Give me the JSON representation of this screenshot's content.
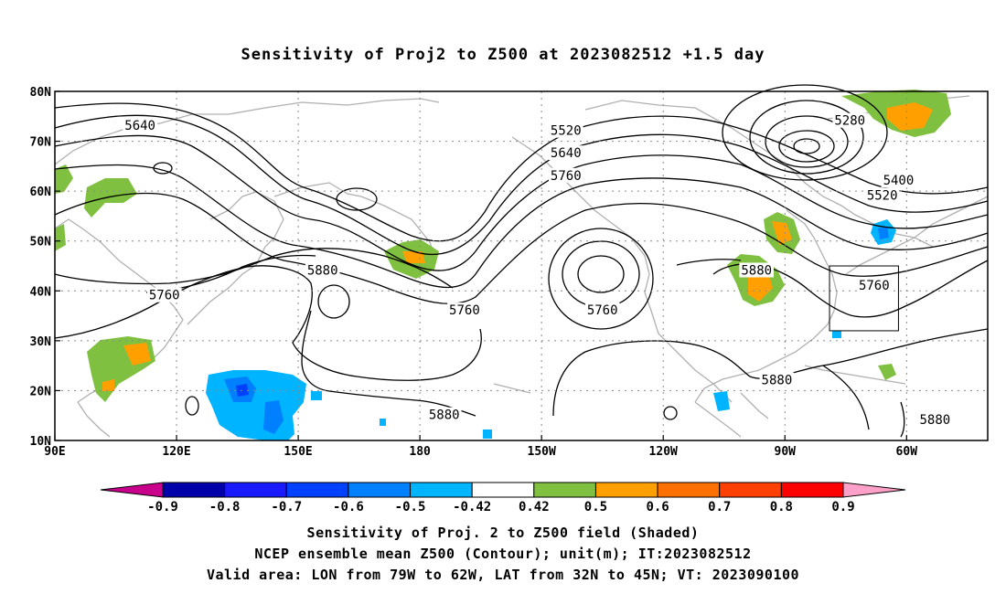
{
  "title": "Sensitivity of Proj2 to Z500 at 2023082512 +1.5 day",
  "lat_labels": [
    "80N",
    "70N",
    "60N",
    "50N",
    "40N",
    "30N",
    "20N",
    "10N"
  ],
  "lat_values": [
    80,
    70,
    60,
    50,
    40,
    30,
    20,
    10
  ],
  "lon_labels": [
    "90E",
    "120E",
    "150E",
    "180",
    "150W",
    "120W",
    "90W",
    "60W"
  ],
  "lon_values": [
    90,
    120,
    150,
    180,
    210,
    240,
    270,
    300
  ],
  "map_extent": {
    "lon_min": 90,
    "lon_max": 320,
    "lat_min": 10,
    "lat_max": 80
  },
  "grid": true,
  "contours": {
    "unit": "m",
    "labels": [
      {
        "text": "5640",
        "lon": 111,
        "lat": 73
      },
      {
        "text": "5520",
        "lon": 216,
        "lat": 72
      },
      {
        "text": "5640",
        "lon": 216,
        "lat": 67.5
      },
      {
        "text": "5760",
        "lon": 216,
        "lat": 63
      },
      {
        "text": "5280",
        "lon": 286,
        "lat": 74
      },
      {
        "text": "5400",
        "lon": 298,
        "lat": 62
      },
      {
        "text": "5520",
        "lon": 294,
        "lat": 59
      },
      {
        "text": "5880",
        "lon": 156,
        "lat": 44
      },
      {
        "text": "5760",
        "lon": 117,
        "lat": 39
      },
      {
        "text": "5760",
        "lon": 191,
        "lat": 36
      },
      {
        "text": "5760",
        "lon": 225,
        "lat": 36
      },
      {
        "text": "5880",
        "lon": 263,
        "lat": 44
      },
      {
        "text": "5760",
        "lon": 292,
        "lat": 41
      },
      {
        "text": "5880",
        "lon": 268,
        "lat": 22
      },
      {
        "text": "5880",
        "lon": 186,
        "lat": 15
      },
      {
        "text": "5880",
        "lon": 307,
        "lat": 14
      }
    ]
  },
  "valid_box": {
    "lon_min": 281,
    "lon_max": 298,
    "lat_min": 32,
    "lat_max": 45
  },
  "colorbar": {
    "labels": [
      "-0.9",
      "-0.8",
      "-0.7",
      "-0.6",
      "-0.5",
      "-0.42",
      "0.42",
      "0.5",
      "0.6",
      "0.7",
      "0.8",
      "0.9"
    ],
    "colors": [
      "#0000aa",
      "#1a1aff",
      "#0040ff",
      "#0080ff",
      "#00b4ff",
      "#ffffff",
      "#80c040",
      "#ffa000",
      "#ff7000",
      "#ff4000",
      "#ff0000"
    ],
    "left_arrow_color": "#c8008c",
    "right_arrow_color": "#ffa0c8"
  },
  "footer": {
    "line1": "Sensitivity of Proj. 2 to Z500 field (Shaded)",
    "line2": "NCEP ensemble mean Z500 (Contour); unit(m); IT:2023082512",
    "line3": "Valid area: LON from 79W to 62W, LAT from 32N to 45N; VT: 2023090100"
  }
}
